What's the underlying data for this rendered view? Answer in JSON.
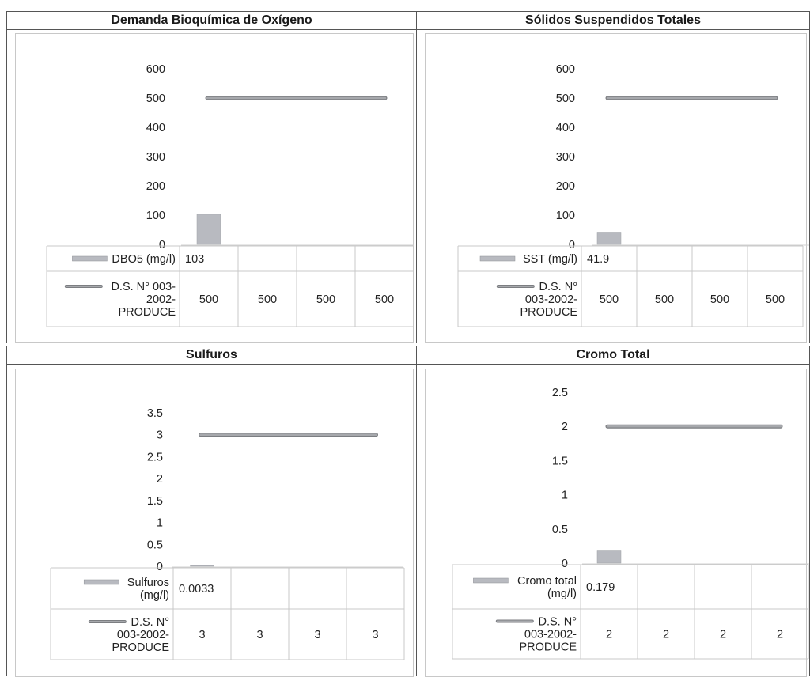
{
  "chart_data": [
    {
      "type": "bar",
      "title": "Demanda Bioquímica de Oxígeno",
      "yticks": [
        "0",
        "100",
        "200",
        "300",
        "400",
        "500",
        "600"
      ],
      "ylim": [
        0,
        600
      ],
      "categories": [
        "",
        "",
        "",
        ""
      ],
      "series": [
        {
          "name": "DBO5 (mg/l)",
          "kind": "bar",
          "label_lines": [
            "DBO5 (mg/l)"
          ],
          "values": [
            103,
            null,
            null,
            null
          ],
          "display": [
            "103",
            "",
            "",
            ""
          ]
        },
        {
          "name": "D.S. N° 003-2002-PRODUCE",
          "kind": "line",
          "label_lines": [
            "D.S. N° 003-",
            "2002-",
            "PRODUCE"
          ],
          "values": [
            500,
            500,
            500,
            500
          ],
          "display": [
            "500",
            "500",
            "500",
            "500"
          ]
        }
      ]
    },
    {
      "type": "bar",
      "title": "Sólidos Suspendidos Totales",
      "yticks": [
        "0",
        "100",
        "200",
        "300",
        "400",
        "500",
        "600"
      ],
      "ylim": [
        0,
        600
      ],
      "categories": [
        "",
        "",
        "",
        ""
      ],
      "series": [
        {
          "name": "SST (mg/l)",
          "kind": "bar",
          "label_lines": [
            "SST (mg/l)"
          ],
          "values": [
            41.9,
            null,
            null,
            null
          ],
          "display": [
            "41.9",
            "",
            "",
            ""
          ]
        },
        {
          "name": "D.S. N° 003-2002-PRODUCE",
          "kind": "line",
          "label_lines": [
            "D.S. N°",
            "003-2002-",
            "PRODUCE"
          ],
          "values": [
            500,
            500,
            500,
            500
          ],
          "display": [
            "500",
            "500",
            "500",
            "500"
          ]
        }
      ]
    },
    {
      "type": "bar",
      "title": "Sulfuros",
      "yticks": [
        "0",
        "0.5",
        "1",
        "1.5",
        "2",
        "2.5",
        "3",
        "3.5"
      ],
      "ylim": [
        0,
        3.5
      ],
      "categories": [
        "",
        "",
        "",
        ""
      ],
      "series": [
        {
          "name": "Sulfuros (mg/l)",
          "kind": "bar",
          "label_lines": [
            "Sulfuros",
            "(mg/l)"
          ],
          "values": [
            0.0033,
            null,
            null,
            null
          ],
          "display": [
            "0.0033",
            "",
            "",
            ""
          ]
        },
        {
          "name": "D.S. N° 003-2002-PRODUCE",
          "kind": "line",
          "label_lines": [
            "D.S. N°",
            "003-2002-",
            "PRODUCE"
          ],
          "values": [
            3,
            3,
            3,
            3
          ],
          "display": [
            "3",
            "3",
            "3",
            "3"
          ]
        }
      ]
    },
    {
      "type": "bar",
      "title": "Cromo Total",
      "yticks": [
        "0",
        "0.5",
        "1",
        "1.5",
        "2",
        "2.5"
      ],
      "ylim": [
        0,
        2.5
      ],
      "categories": [
        "",
        "",
        "",
        ""
      ],
      "series": [
        {
          "name": "Cromo total (mg/l)",
          "kind": "bar",
          "label_lines": [
            "Cromo total",
            "(mg/l)"
          ],
          "values": [
            0.179,
            null,
            null,
            null
          ],
          "display": [
            "0.179",
            "",
            "",
            ""
          ]
        },
        {
          "name": "D.S. N° 003-2002-PRODUCE",
          "kind": "line",
          "label_lines": [
            "D.S. N°",
            "003-2002-",
            "PRODUCE"
          ],
          "values": [
            2,
            2,
            2,
            2
          ],
          "display": [
            "2",
            "2",
            "2",
            "2"
          ]
        }
      ]
    }
  ],
  "colors": {
    "bar": "#b8bac0",
    "line": "#a6a8ac",
    "line_edge": "#7c7e82",
    "grid_border": "#c8c8c8"
  }
}
